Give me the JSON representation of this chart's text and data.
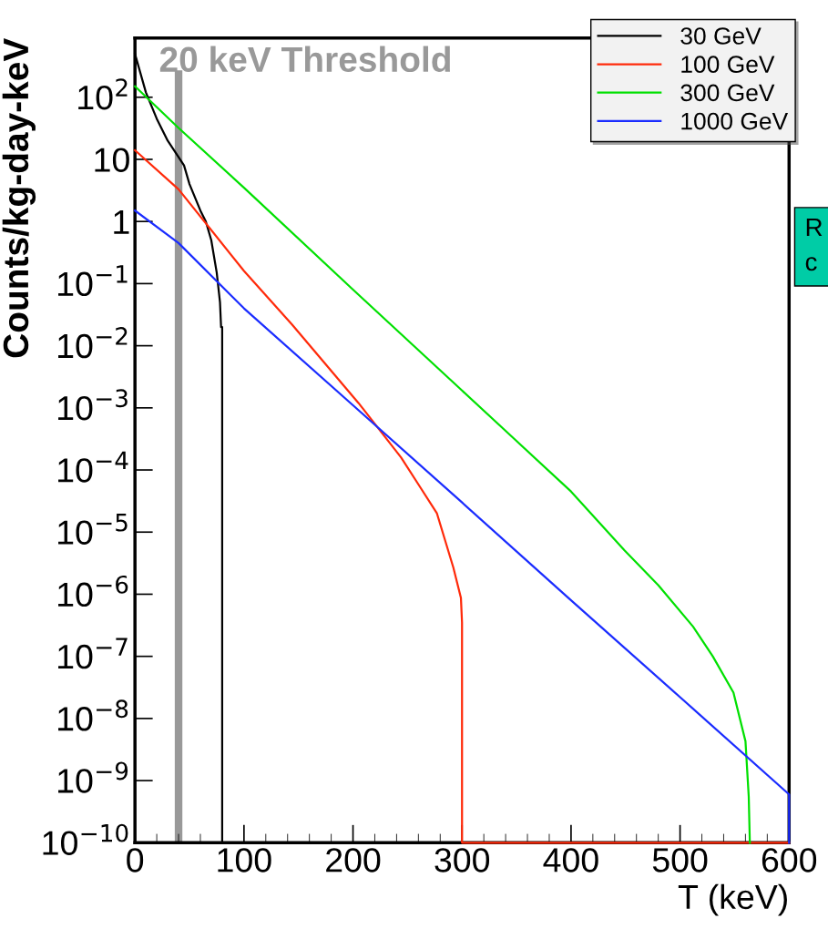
{
  "chart_data": {
    "type": "line",
    "xlabel": "T (keV)",
    "ylabel": "Counts/kg-day-keV",
    "log": "y",
    "xlim": [
      0,
      600
    ],
    "ylim": [
      1e-10,
      900
    ],
    "xticks": [
      0,
      100,
      200,
      300,
      400,
      500,
      600
    ],
    "yticks": [
      {
        "value": 1e-10,
        "label": "10$^{−10}$"
      },
      {
        "value": 1e-09,
        "label": "10$^{−9}$"
      },
      {
        "value": 1e-08,
        "label": "10$^{−8}$"
      },
      {
        "value": 1e-07,
        "label": "10$^{−7}$"
      },
      {
        "value": 1e-06,
        "label": "10$^{−6}$"
      },
      {
        "value": 1e-05,
        "label": "10$^{−5}$"
      },
      {
        "value": 0.0001,
        "label": "10$^{−4}$"
      },
      {
        "value": 0.001,
        "label": "10$^{−3}$"
      },
      {
        "value": 0.01,
        "label": "10$^{−2}$"
      },
      {
        "value": 0.1,
        "label": "10$^{−1}$"
      },
      1,
      10,
      {
        "value": 100,
        "label": "10$^{2}$"
      }
    ],
    "grid": false,
    "legend": "top right",
    "marker": "none",
    "line_style": "solid",
    "series": [
      {
        "name": "30 GeV",
        "color": "#000000",
        "x": [
          0,
          10,
          20,
          30,
          45,
          50,
          60,
          65,
          70,
          75,
          78,
          79,
          80,
          80
        ],
        "values": [
          500,
          120,
          45,
          20,
          8,
          4,
          1.5,
          1,
          0.5,
          0.15,
          0.05,
          0.02,
          0.02,
          1e-10
        ]
      },
      {
        "name": "100 GeV",
        "color": "#ff2a0a",
        "x": [
          0,
          40,
          100,
          144,
          205,
          244,
          261,
          277,
          292,
          299,
          300,
          300,
          600
        ],
        "values": [
          14,
          3.3,
          0.16,
          0.022,
          0.0012,
          0.00016,
          5.5e-05,
          2e-05,
          2.7e-06,
          8.7e-07,
          3.5e-07,
          1e-10,
          1e-10
        ]
      },
      {
        "name": "300 GeV",
        "color": "#00e000",
        "x": [
          0,
          40,
          100,
          200,
          300,
          346,
          400,
          449,
          480,
          512,
          530,
          549,
          560,
          563,
          564
        ],
        "values": [
          150,
          32,
          3.5,
          0.08,
          0.0019,
          0.00034,
          4.5e-05,
          5.1e-06,
          1.4e-06,
          3e-07,
          1e-07,
          2.6e-08,
          4.3e-09,
          5.5e-10,
          1e-10
        ]
      },
      {
        "name": "1000 GeV",
        "color": "#1a2cff",
        "x": [
          0,
          40,
          100,
          200,
          300,
          400,
          500,
          600,
          600
        ],
        "values": [
          1.5,
          0.45,
          0.04,
          0.0011,
          3e-05,
          8e-07,
          2.2e-08,
          6e-10,
          1e-10
        ]
      }
    ],
    "ref_lines": [
      {
        "axis": "x",
        "value": 40,
        "label": "20 keV Threshold",
        "color": "#999999"
      }
    ],
    "annotations": [
      "R\nc"
    ]
  }
}
